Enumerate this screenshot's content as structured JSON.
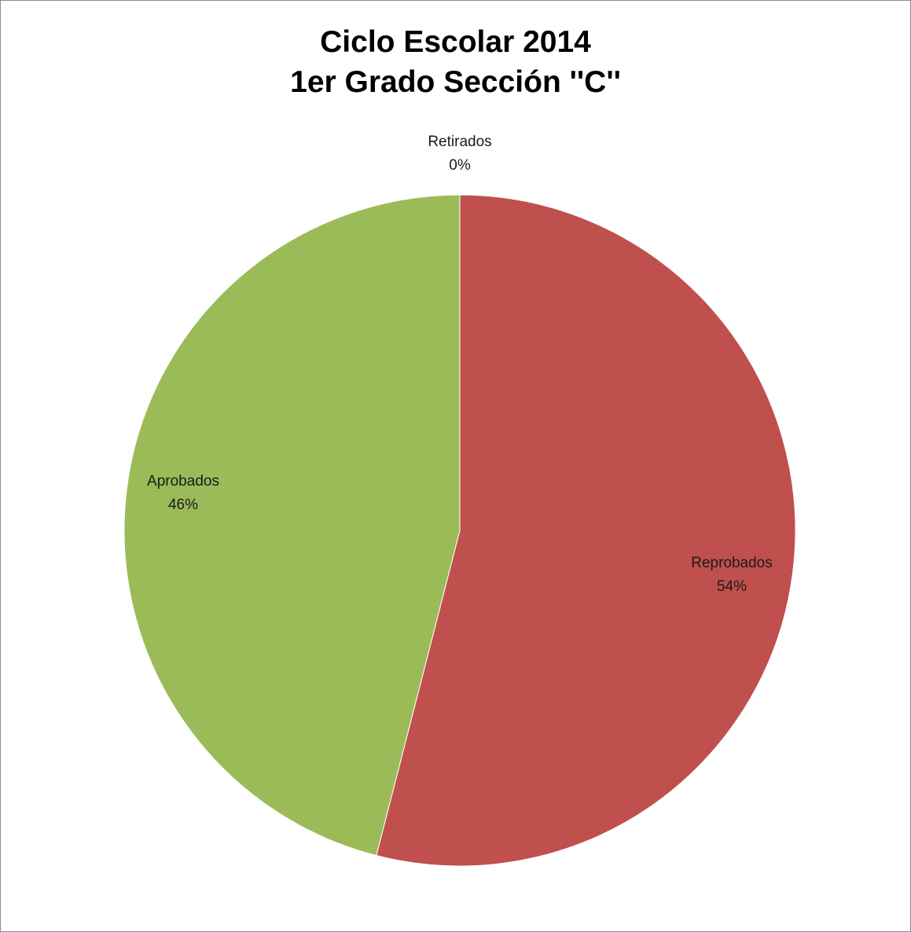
{
  "chart_data": {
    "type": "pie",
    "title": "Ciclo Escolar 2014",
    "subtitle": "1er Grado Sección ''C''",
    "categories": [
      "Reprobados",
      "Aprobados",
      "Retirados"
    ],
    "values": [
      54,
      46,
      0
    ],
    "value_labels": [
      "54%",
      "46%",
      "0%"
    ],
    "colors": [
      "#c0504d",
      "#9bbb59",
      "#8064a2"
    ],
    "start_angle_deg": 0,
    "direction": "clockwise",
    "legend": "none",
    "data_labels": "category-and-percent"
  }
}
